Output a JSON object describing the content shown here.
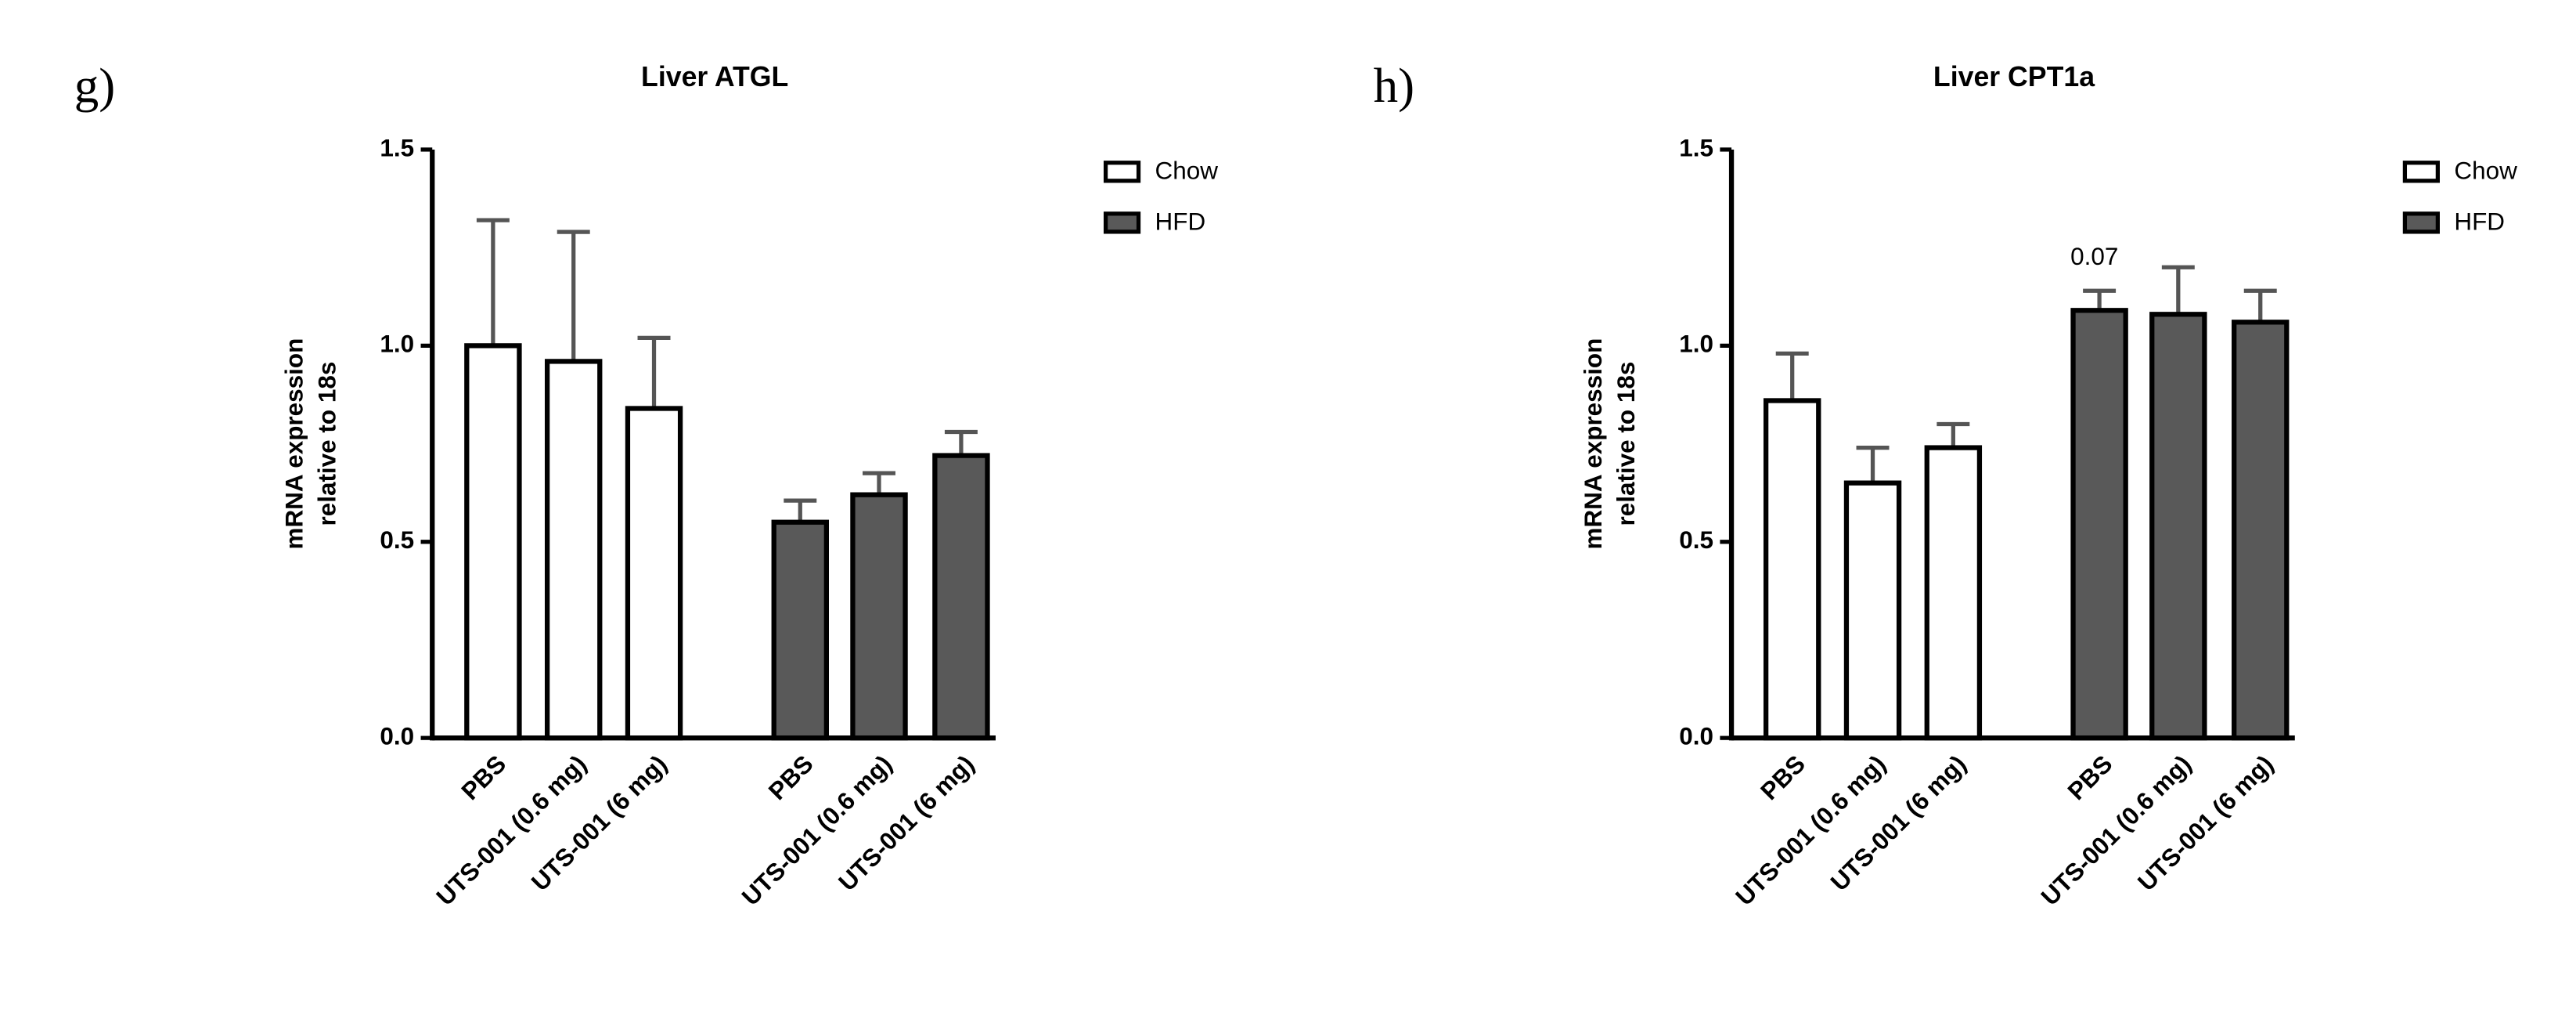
{
  "chart_data": [
    {
      "type": "bar",
      "panel_label": "g)",
      "title": "Liver ATGL",
      "ylabel": [
        "mRNA expression",
        "relative to 18s"
      ],
      "categories": [
        "PBS",
        "UTS-001 (0.6 mg)",
        "UTS-001 (6 mg)",
        "PBS",
        "UTS-001 (0.6 mg)",
        "UTS-001 (6 mg)"
      ],
      "series": [
        {
          "name": "Chow",
          "color": "#ffffff",
          "values": [
            1.0,
            0.96,
            0.84,
            null,
            null,
            null
          ],
          "errors": [
            0.32,
            0.33,
            0.18,
            null,
            null,
            null
          ]
        },
        {
          "name": "HFD",
          "color": "#595959",
          "values": [
            null,
            null,
            null,
            0.55,
            0.62,
            0.72
          ],
          "errors": [
            null,
            null,
            null,
            0.055,
            0.055,
            0.06
          ]
        }
      ],
      "ylim": [
        0,
        1.5
      ],
      "yticks": [
        {
          "value": 0,
          "label": "0.0"
        },
        {
          "value": 0.5,
          "label": "0.5"
        },
        {
          "value": 1,
          "label": "1.0"
        },
        {
          "value": 1.5,
          "label": "1.5"
        }
      ]
    },
    {
      "type": "bar",
      "panel_label": "h)",
      "title": "Liver CPT1a",
      "ylabel": [
        "mRNA expression",
        "relative to 18s"
      ],
      "categories": [
        "PBS",
        "UTS-001 (0.6 mg)",
        "UTS-001 (6 mg)",
        "PBS",
        "UTS-001 (0.6 mg)",
        "UTS-001 (6 mg)"
      ],
      "series": [
        {
          "name": "Chow",
          "color": "#ffffff",
          "values": [
            0.86,
            0.65,
            0.74,
            null,
            null,
            null
          ],
          "errors": [
            0.12,
            0.09,
            0.06,
            null,
            null,
            null
          ]
        },
        {
          "name": "HFD",
          "color": "#595959",
          "values": [
            null,
            null,
            null,
            1.09,
            1.08,
            1.06
          ],
          "errors": [
            null,
            null,
            null,
            0.05,
            0.12,
            0.08
          ]
        }
      ],
      "annotation": "0.07",
      "ylim": [
        0,
        1.5
      ],
      "yticks": [
        {
          "value": 0,
          "label": "0.0"
        },
        {
          "value": 0.5,
          "label": "0.5"
        },
        {
          "value": 1,
          "label": "1.0"
        },
        {
          "value": 1.5,
          "label": "1.5"
        }
      ]
    }
  ]
}
